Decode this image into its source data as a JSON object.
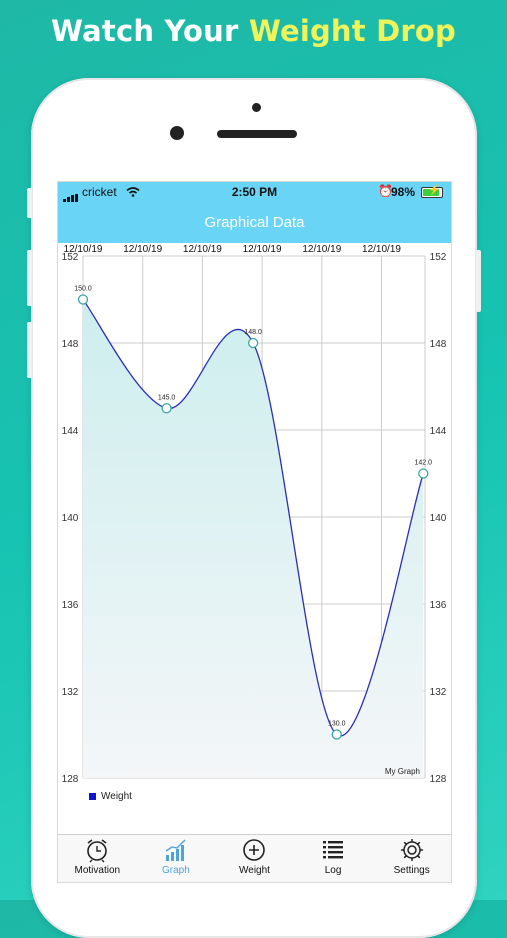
{
  "headline": {
    "part1": "Watch Your ",
    "part2": "Weight Drop"
  },
  "colors": {
    "accent": "#6ad4f7",
    "line": "#2a2fb8",
    "active_tab": "#4ea2dd",
    "headline_accent": "#eef45a"
  },
  "status_bar": {
    "carrier": "cricket",
    "time": "2:50 PM",
    "battery": "98%"
  },
  "nav": {
    "title": "Graphical Data"
  },
  "chart_data": {
    "type": "line",
    "title": "",
    "x": [
      "12/10/19",
      "12/10/19",
      "12/10/19",
      "12/10/19",
      "12/10/19",
      "12/10/19"
    ],
    "series": [
      {
        "name": "Weight",
        "points": [
          {
            "x": 0,
            "y": 150.0,
            "label": "150.0"
          },
          {
            "x": 1.4,
            "y": 145.0,
            "label": "145.0"
          },
          {
            "x": 2.85,
            "y": 148.0,
            "label": "148.0"
          },
          {
            "x": 4.25,
            "y": 130.0,
            "label": "130.0"
          },
          {
            "x": 5.7,
            "y": 142.0,
            "label": "142.0"
          }
        ]
      }
    ],
    "y_ticks": [
      "152",
      "148",
      "144",
      "140",
      "136",
      "132",
      "128"
    ],
    "ylim": [
      128,
      152
    ],
    "grid": true,
    "annotation": "My Graph",
    "legend": {
      "label": "Weight",
      "position": "bottom-left"
    }
  },
  "tabs": [
    {
      "label": "Motivation",
      "icon": "alarm-clock-icon",
      "active": false
    },
    {
      "label": "Graph",
      "icon": "bar-chart-icon",
      "active": true
    },
    {
      "label": "Weight",
      "icon": "plus-circle-icon",
      "active": false
    },
    {
      "label": "Log",
      "icon": "list-icon",
      "active": false
    },
    {
      "label": "Settings",
      "icon": "gear-icon",
      "active": false
    }
  ]
}
